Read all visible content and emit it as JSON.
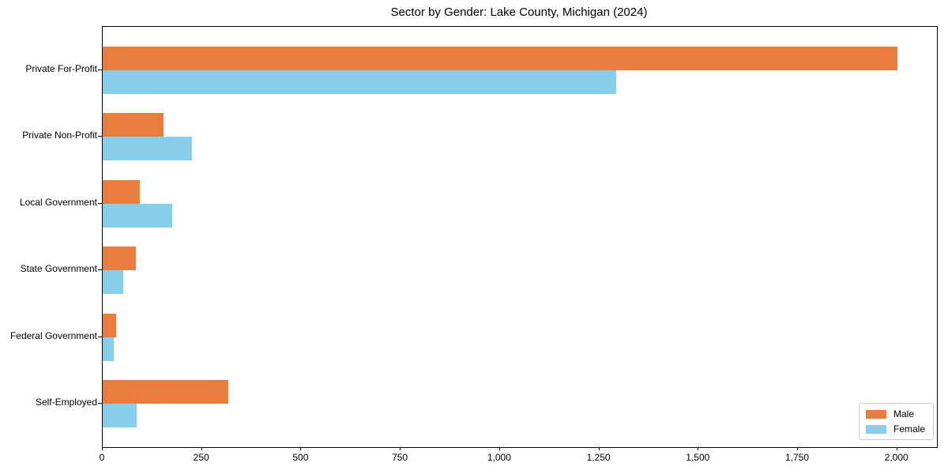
{
  "title": "Sector by Gender: Lake County, Michigan (2024)",
  "colors": {
    "male": "#e87d3e",
    "female": "#87ceeb",
    "spine": "#000000",
    "legend_border": "#cccccc",
    "background": "#ffffff"
  },
  "chart_data": {
    "type": "bar",
    "orientation": "horizontal",
    "title": "Sector by Gender: Lake County, Michigan (2024)",
    "categories": [
      "Private For-Profit",
      "Private Non-Profit",
      "Local Government",
      "State Government",
      "Federal Government",
      "Self-Employed"
    ],
    "series": [
      {
        "name": "Male",
        "color": "#e87d3e",
        "values": [
          2000,
          153,
          93,
          84,
          34,
          316
        ]
      },
      {
        "name": "Female",
        "color": "#87ceeb",
        "values": [
          1292,
          225,
          175,
          52,
          28,
          86
        ]
      }
    ],
    "xlim": [
      0,
      2100
    ],
    "x_ticks": [
      0,
      250,
      500,
      750,
      1000,
      1250,
      1500,
      1750,
      2000
    ],
    "x_tick_labels": [
      "0",
      "250",
      "500",
      "750",
      "1,000",
      "1,250",
      "1,500",
      "1,750",
      "2,000"
    ],
    "xlabel": "",
    "ylabel": "",
    "grid": false,
    "legend_position": "lower right"
  }
}
